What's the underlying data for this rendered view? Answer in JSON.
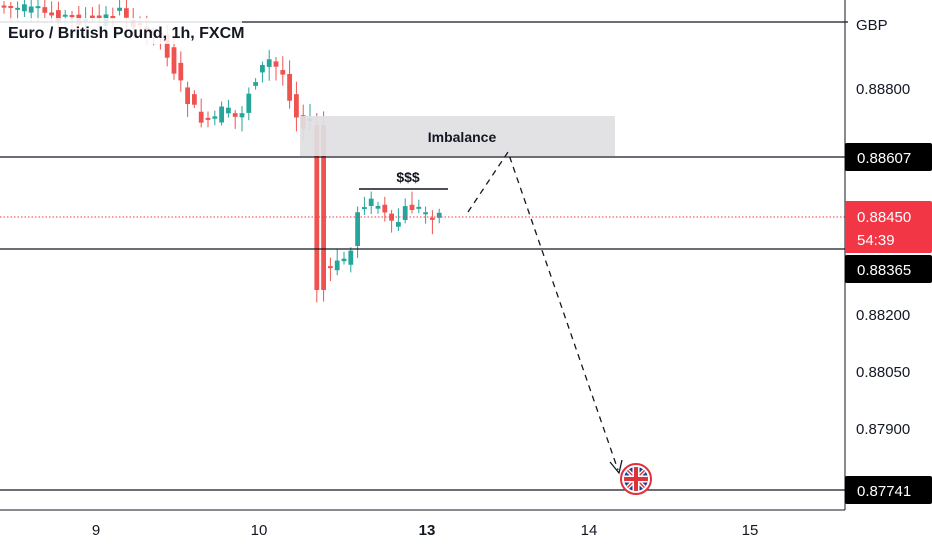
{
  "chart_data": {
    "type": "candlestick",
    "title": "Euro / British Pound, 1h, FXCM",
    "currency_label": "GBP",
    "y_ticks": [
      "0.88800",
      "0.88200",
      "0.88050",
      "0.87900"
    ],
    "x_ticks": [
      {
        "label": "9",
        "bold": false
      },
      {
        "label": "10",
        "bold": false
      },
      {
        "label": "13",
        "bold": true
      },
      {
        "label": "14",
        "bold": false
      },
      {
        "label": "15",
        "bold": false
      }
    ],
    "levels": [
      {
        "price": 0.88607,
        "label": "0.88607"
      },
      {
        "price": 0.88365,
        "label": "0.88365"
      },
      {
        "price": 0.87741,
        "label": "0.87741"
      }
    ],
    "current_price": {
      "label": "0.88450",
      "countdown": "54:39",
      "price": 0.8845
    },
    "zone": {
      "label": "Imbalance",
      "from": 0.88607,
      "to": 0.88705
    },
    "liquidity_label": "$$$",
    "colors": {
      "up": "#26a69a",
      "down": "#ef5350",
      "zone": "#e2e3e5",
      "current": "#f23645",
      "tag": "#000000"
    },
    "candles_summary": {
      "decline_low": 0.88265,
      "spike_low": 0.8823,
      "session_high": 0.88528
    }
  }
}
